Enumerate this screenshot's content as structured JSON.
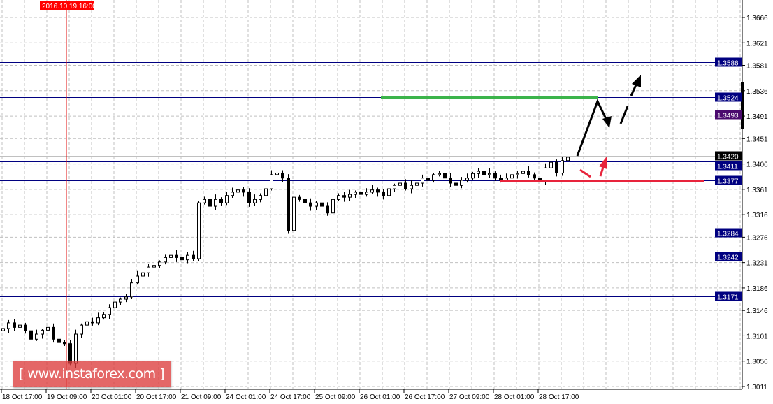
{
  "chart_data": {
    "type": "candlestick",
    "symbol_timeframe": "H1",
    "ylim": [
      1.3,
      1.3697
    ],
    "grid": true,
    "y_ticks": [
      "1.3666",
      "1.3621",
      "1.3581",
      "1.3536",
      "1.3491",
      "1.3451",
      "1.3406",
      "1.3361",
      "1.3316",
      "1.3276",
      "1.3231",
      "1.3186",
      "1.3146",
      "1.3101",
      "1.3056",
      "1.3011"
    ],
    "x_ticks": [
      "18 Oct 17:00",
      "19 Oct 09:00",
      "20 Oct 01:00",
      "20 Oct 17:00",
      "21 Oct 09:00",
      "24 Oct 01:00",
      "24 Oct 17:00",
      "25 Oct 09:00",
      "26 Oct 01:00",
      "26 Oct 17:00",
      "27 Oct 09:00",
      "28 Oct 01:00",
      "28 Oct 17:00"
    ],
    "crosshair_time_label": "2016.10.19 16:00",
    "closes": [
      1.3114,
      1.3124,
      1.3116,
      1.312,
      1.311,
      1.3095,
      1.3104,
      1.3111,
      1.3116,
      1.3095,
      1.3089,
      1.3087,
      1.3052,
      1.3104,
      1.312,
      1.3126,
      1.3124,
      1.3133,
      1.3139,
      1.3151,
      1.3161,
      1.3166,
      1.317,
      1.3195,
      1.3207,
      1.3213,
      1.3223,
      1.3226,
      1.3232,
      1.324,
      1.3244,
      1.324,
      1.3236,
      1.3244,
      1.3238,
      1.3337,
      1.3343,
      1.3331,
      1.3343,
      1.3337,
      1.335,
      1.3356,
      1.336,
      1.3356,
      1.3337,
      1.3343,
      1.335,
      1.3362,
      1.3387,
      1.339,
      1.3381,
      1.3288,
      1.3347,
      1.3343,
      1.3337,
      1.3331,
      1.3337,
      1.3331,
      1.3319,
      1.3343,
      1.335,
      1.3347,
      1.3352,
      1.3356,
      1.3352,
      1.3356,
      1.336,
      1.3356,
      1.335,
      1.3362,
      1.3368,
      1.3372,
      1.3362,
      1.3368,
      1.3372,
      1.3381,
      1.3377,
      1.3387,
      1.3389,
      1.3381,
      1.3372,
      1.3368,
      1.3377,
      1.3381,
      1.3389,
      1.3393,
      1.3387,
      1.3389,
      1.3381,
      1.3377,
      1.3381,
      1.3387,
      1.3389,
      1.3393,
      1.3387,
      1.3381,
      1.3377,
      1.3399,
      1.3409,
      1.339,
      1.3412,
      1.3418
    ],
    "levels": [
      {
        "price": 1.3586,
        "label": "1.3586",
        "color": "#000080"
      },
      {
        "price": 1.3524,
        "label": "1.3524",
        "color": "#000080"
      },
      {
        "price": 1.3493,
        "label": "1.3493",
        "color": "#4b0a6e"
      },
      {
        "price": 1.342,
        "label": "1.3420",
        "color": "#000000",
        "line_color": "#c0c0c0"
      },
      {
        "price": 1.3411,
        "label": "1.3411",
        "color": "#000080"
      },
      {
        "price": 1.3377,
        "label": "1.3377",
        "color": "#000080"
      },
      {
        "price": 1.3284,
        "label": "1.3284",
        "color": "#000080"
      },
      {
        "price": 1.3242,
        "label": "1.3242",
        "color": "#000080"
      },
      {
        "price": 1.3171,
        "label": "1.3171",
        "color": "#000080"
      }
    ],
    "resistance_color": "#3cb44b",
    "support_color": "#e8243c",
    "resistance_price": 1.3524,
    "support_price": 1.3376
  },
  "watermark": "[ www.instaforex.com ]"
}
